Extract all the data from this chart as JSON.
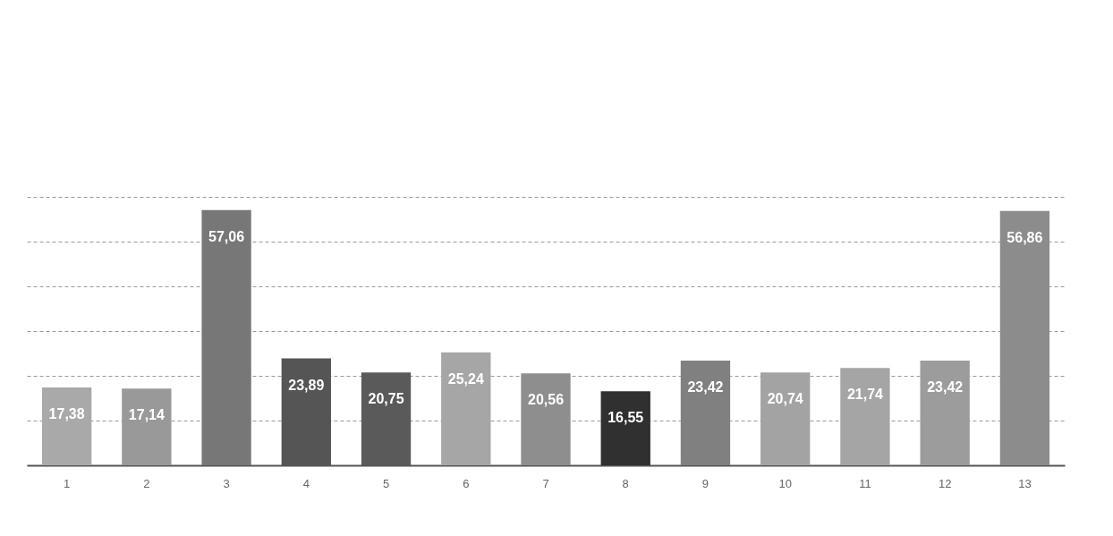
{
  "chart_data": {
    "type": "bar",
    "categories": [
      "1",
      "2",
      "3",
      "4",
      "5",
      "6",
      "7",
      "8",
      "9",
      "10",
      "11",
      "12",
      "13"
    ],
    "values": [
      17.38,
      17.14,
      57.06,
      23.89,
      20.75,
      25.24,
      20.56,
      16.55,
      23.42,
      20.74,
      21.74,
      23.42,
      56.86
    ],
    "value_labels": [
      "17,38",
      "17,14",
      "57,06",
      "23,89",
      "20,75",
      "25,24",
      "20,56",
      "16,55",
      "23,42",
      "20,74",
      "21,74",
      "23,42",
      "56,86"
    ],
    "colors": [
      "#a9a9a9",
      "#999999",
      "#777777",
      "#555555",
      "#5a5a5a",
      "#a6a6a6",
      "#8e8e8e",
      "#303030",
      "#808080",
      "#a3a3a3",
      "#a5a5a5",
      "#9c9c9c",
      "#8c8c8c"
    ],
    "ylim": [
      0,
      60
    ],
    "yticks": [
      {
        "value": 0,
        "label": null
      },
      {
        "value": 10,
        "label": null
      },
      {
        "value": 20,
        "label": null
      },
      {
        "value": 30,
        "label": null
      },
      {
        "value": 40,
        "label": null
      },
      {
        "value": 50,
        "label": null
      },
      {
        "value": 60,
        "label": null
      }
    ],
    "grid": "y",
    "legend": false,
    "tick_labels": "x"
  }
}
